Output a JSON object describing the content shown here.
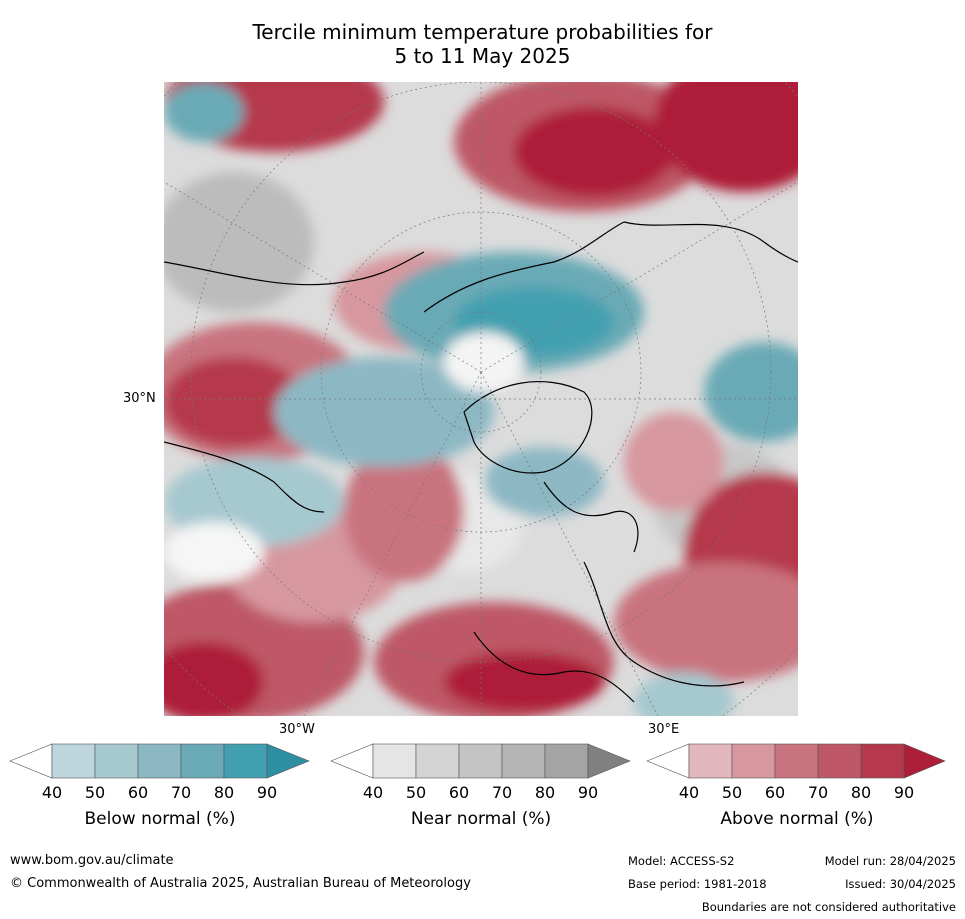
{
  "title_line1": "Tercile minimum temperature probabilities for",
  "title_line2": "5 to 11 May 2025",
  "map": {
    "lat_label": "30°N",
    "lon_label_west": "30°W",
    "lon_label_east": "30°E"
  },
  "legends": [
    {
      "title": "Below normal (%)",
      "ticks": [
        "40",
        "50",
        "60",
        "70",
        "80",
        "90"
      ],
      "colors": [
        "#ffffff",
        "#bdd5dd",
        "#a6c8cf",
        "#8cb8c4",
        "#6aaab6",
        "#43a0b0",
        "#2e8fa3"
      ]
    },
    {
      "title": "Near normal (%)",
      "ticks": [
        "40",
        "50",
        "60",
        "70",
        "80",
        "90"
      ],
      "colors": [
        "#ffffff",
        "#e5e5e5",
        "#d4d4d4",
        "#c4c4c4",
        "#b5b5b5",
        "#a4a4a4",
        "#808080"
      ]
    },
    {
      "title": "Above normal (%)",
      "ticks": [
        "40",
        "50",
        "60",
        "70",
        "80",
        "90"
      ],
      "colors": [
        "#ffffff",
        "#e2b7bd",
        "#d7979f",
        "#c9737e",
        "#be5866",
        "#b5384c",
        "#ad1f38"
      ]
    }
  ],
  "footer": {
    "website": "www.bom.gov.au/climate",
    "copyright": "© Commonwealth of Australia 2025, Australian Bureau of Meteorology",
    "model": "Model: ACCESS-S2",
    "base_period": "Base period: 1981-2018",
    "model_run": "Model run: 28/04/2025",
    "issued": "Issued: 30/04/2025",
    "disclaimer": "Boundaries are not considered authoritative"
  }
}
